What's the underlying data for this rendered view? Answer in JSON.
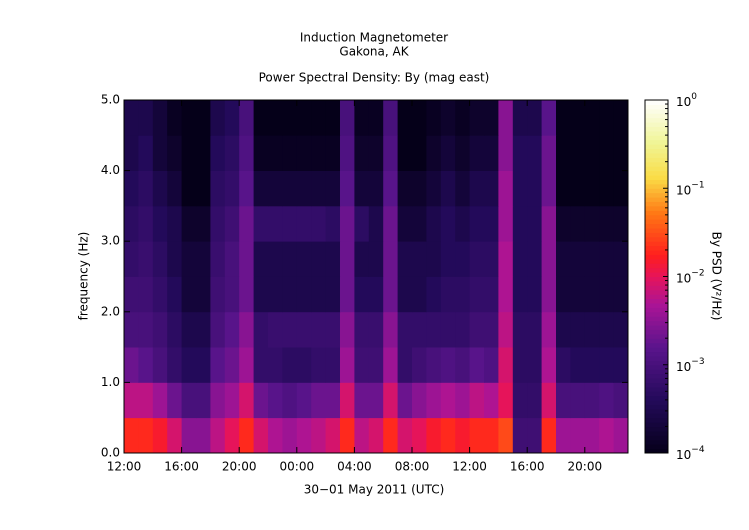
{
  "chart_data": {
    "type": "spectrogram",
    "title": "Induction Magnetometer",
    "subtitle": "Gakona, AK",
    "plot_title": "Power Spectral Density: By (mag east)",
    "xlabel": "30−01 May 2011 (UTC)",
    "ylabel": "frequency (Hz)",
    "colorbar_label": "By PSD (V²/Hz)",
    "xlim": [
      0,
      35
    ],
    "xticks": [
      {
        "value": 0,
        "label": "12:00"
      },
      {
        "value": 4,
        "label": "16:00"
      },
      {
        "value": 8,
        "label": "20:00"
      },
      {
        "value": 12,
        "label": "00:00"
      },
      {
        "value": 16,
        "label": "04:00"
      },
      {
        "value": 20,
        "label": "08:00"
      },
      {
        "value": 24,
        "label": "12:00"
      },
      {
        "value": 28,
        "label": "16:00"
      },
      {
        "value": 32,
        "label": "20:00"
      }
    ],
    "ylim": [
      0,
      5
    ],
    "yticks": [
      {
        "value": 0,
        "label": "0.0"
      },
      {
        "value": 1,
        "label": "1.0"
      },
      {
        "value": 2,
        "label": "2.0"
      },
      {
        "value": 3,
        "label": "3.0"
      },
      {
        "value": 4,
        "label": "4.0"
      },
      {
        "value": 5,
        "label": "5.0"
      }
    ],
    "zlim": [
      0.0001,
      1
    ],
    "zscale": "log",
    "zticks": [
      {
        "value": 0.0001,
        "label": "10",
        "exp": "−4"
      },
      {
        "value": 0.001,
        "label": "10",
        "exp": "−3"
      },
      {
        "value": 0.01,
        "label": "10",
        "exp": "−2"
      },
      {
        "value": 0.1,
        "label": "10",
        "exp": "−1"
      },
      {
        "value": 1,
        "label": "10",
        "exp": "0"
      }
    ],
    "xbins": [
      0,
      1,
      2,
      3,
      4,
      5,
      6,
      7,
      8,
      9,
      10,
      11,
      12,
      13,
      14,
      15,
      16,
      17,
      18,
      19,
      20,
      21,
      22,
      23,
      24,
      25,
      26,
      27,
      28,
      29,
      30,
      31,
      32,
      33,
      34,
      35
    ],
    "ybins": [
      0,
      0.5,
      1,
      1.5,
      2,
      2.5,
      3,
      3.5,
      4,
      4.5,
      5
    ],
    "z": [
      [
        0.02,
        0.02,
        0.015,
        0.008,
        0.003,
        0.003,
        0.006,
        0.01,
        0.02,
        0.008,
        0.005,
        0.004,
        0.005,
        0.006,
        0.008,
        0.02,
        0.006,
        0.008,
        0.02,
        0.008,
        0.01,
        0.015,
        0.02,
        0.015,
        0.02,
        0.02,
        0.03,
        0.0008,
        0.0008,
        0.02,
        0.004,
        0.004,
        0.004,
        0.005,
        0.004
      ],
      [
        0.006,
        0.006,
        0.004,
        0.002,
        0.001,
        0.001,
        0.003,
        0.004,
        0.008,
        0.002,
        0.0015,
        0.0012,
        0.0015,
        0.002,
        0.002,
        0.008,
        0.002,
        0.002,
        0.008,
        0.002,
        0.003,
        0.004,
        0.005,
        0.004,
        0.006,
        0.005,
        0.01,
        0.0006,
        0.0006,
        0.008,
        0.001,
        0.001,
        0.001,
        0.0012,
        0.001
      ],
      [
        0.002,
        0.0015,
        0.001,
        0.0006,
        0.0004,
        0.0004,
        0.0015,
        0.002,
        0.004,
        0.0006,
        0.0006,
        0.0005,
        0.0005,
        0.0006,
        0.0006,
        0.004,
        0.0008,
        0.0008,
        0.004,
        0.0006,
        0.0008,
        0.001,
        0.0012,
        0.001,
        0.0015,
        0.0012,
        0.008,
        0.0005,
        0.0005,
        0.005,
        0.0005,
        0.0004,
        0.0004,
        0.0004,
        0.0004
      ],
      [
        0.001,
        0.001,
        0.0008,
        0.0005,
        0.0003,
        0.0003,
        0.001,
        0.0015,
        0.003,
        0.0006,
        0.0007,
        0.0007,
        0.0007,
        0.0007,
        0.0007,
        0.003,
        0.0007,
        0.0007,
        0.003,
        0.0006,
        0.0006,
        0.0006,
        0.0006,
        0.0006,
        0.0008,
        0.0008,
        0.006,
        0.0005,
        0.0005,
        0.004,
        0.0003,
        0.0003,
        0.0003,
        0.0003,
        0.0003
      ],
      [
        0.0008,
        0.0008,
        0.0006,
        0.0004,
        0.0002,
        0.0002,
        0.0008,
        0.001,
        0.002,
        0.0003,
        0.0003,
        0.0003,
        0.0003,
        0.0003,
        0.0003,
        0.002,
        0.0004,
        0.0004,
        0.002,
        0.0003,
        0.0003,
        0.0004,
        0.0005,
        0.0005,
        0.0006,
        0.0006,
        0.005,
        0.0004,
        0.0004,
        0.003,
        0.0002,
        0.0002,
        0.0002,
        0.0002,
        0.0002
      ],
      [
        0.0006,
        0.0007,
        0.0005,
        0.0003,
        0.0002,
        0.0002,
        0.0007,
        0.001,
        0.002,
        0.0003,
        0.0003,
        0.0003,
        0.0003,
        0.0003,
        0.0003,
        0.002,
        0.0003,
        0.0003,
        0.002,
        0.0003,
        0.0003,
        0.0003,
        0.0004,
        0.0004,
        0.0005,
        0.0005,
        0.005,
        0.0004,
        0.0004,
        0.003,
        0.0002,
        0.0002,
        0.0002,
        0.0002,
        0.0002
      ],
      [
        0.0005,
        0.0006,
        0.0004,
        0.0003,
        0.00015,
        0.00015,
        0.0006,
        0.0008,
        0.002,
        0.0006,
        0.0006,
        0.0006,
        0.0006,
        0.0006,
        0.0005,
        0.002,
        0.0005,
        0.0003,
        0.002,
        0.0002,
        0.0002,
        0.0003,
        0.0004,
        0.0003,
        0.0004,
        0.0004,
        0.004,
        0.0004,
        0.0004,
        0.003,
        0.00015,
        0.00015,
        0.00015,
        0.00015,
        0.00015
      ],
      [
        0.0004,
        0.0005,
        0.0003,
        0.0002,
        0.0001,
        0.0001,
        0.0005,
        0.0006,
        0.0015,
        0.0002,
        0.0002,
        0.0002,
        0.0002,
        0.0002,
        0.0002,
        0.0015,
        0.0002,
        0.0002,
        0.0015,
        0.00015,
        0.00015,
        0.0002,
        0.0003,
        0.0002,
        0.0003,
        0.0003,
        0.004,
        0.0004,
        0.0004,
        0.002,
        0.0001,
        0.0001,
        0.0001,
        0.0001,
        0.0001
      ],
      [
        0.0003,
        0.0004,
        0.0002,
        0.00015,
        0.0001,
        0.0001,
        0.0004,
        0.0005,
        0.0012,
        0.00012,
        0.00012,
        0.00012,
        0.00012,
        0.00012,
        0.00012,
        0.0012,
        0.00015,
        0.00015,
        0.0012,
        0.0001,
        0.0001,
        0.00015,
        0.0002,
        0.00015,
        0.0002,
        0.0002,
        0.003,
        0.0004,
        0.0004,
        0.002,
        0.0001,
        0.0001,
        0.0001,
        0.0001,
        0.0001
      ],
      [
        0.0003,
        0.0003,
        0.0002,
        0.00012,
        0.0001,
        0.0001,
        0.0003,
        0.0004,
        0.001,
        0.0001,
        0.0001,
        0.0001,
        0.0001,
        0.0001,
        0.0001,
        0.001,
        0.00012,
        0.00012,
        0.001,
        0.0001,
        0.0001,
        0.00012,
        0.00015,
        0.00012,
        0.00015,
        0.00015,
        0.003,
        0.0003,
        0.0003,
        0.0015,
        0.0001,
        0.0001,
        0.0001,
        0.0001,
        0.0001
      ]
    ]
  }
}
